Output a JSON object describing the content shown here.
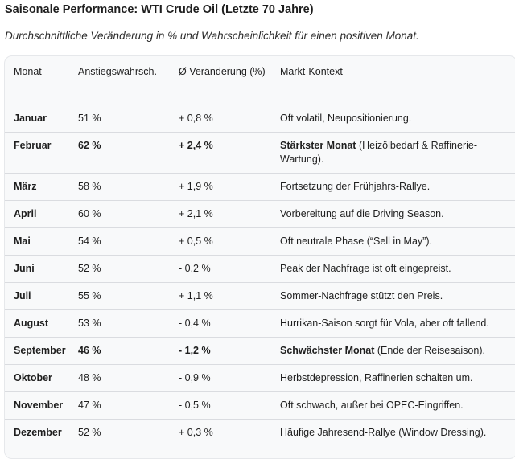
{
  "title": "Saisonale Performance: WTI Crude Oil (Letzte 70 Jahre)",
  "subtitle": "Durchschnittliche Veränderung in % und Wahrscheinlichkeit für einen positiven Monat.",
  "table": {
    "headers": {
      "month": "Monat",
      "probability": "Anstiegswahrsch.",
      "change": "Ø Veränderung (%)",
      "context": "Markt-Kontext"
    },
    "rows": [
      {
        "month": "Januar",
        "probability": "51 %",
        "change": "+ 0,8 %",
        "context_bold": "",
        "context": "Oft volatil, Neupositionierung."
      },
      {
        "month": "Februar",
        "probability": "62 %",
        "change": "+ 2,4 %",
        "context_bold": "Stärkster Monat",
        "context": " (Heizölbedarf & Raffinerie-Wartung)."
      },
      {
        "month": "März",
        "probability": "58 %",
        "change": "+ 1,9 %",
        "context_bold": "",
        "context": "Fortsetzung der Frühjahrs-Rallye."
      },
      {
        "month": "April",
        "probability": "60 %",
        "change": "+ 2,1 %",
        "context_bold": "",
        "context": "Vorbereitung auf die Driving Season."
      },
      {
        "month": "Mai",
        "probability": "54 %",
        "change": "+ 0,5 %",
        "context_bold": "",
        "context": "Oft neutrale Phase (“Sell in May”)."
      },
      {
        "month": "Juni",
        "probability": "52 %",
        "change": "- 0,2 %",
        "context_bold": "",
        "context": "Peak der Nachfrage ist oft eingepreist."
      },
      {
        "month": "Juli",
        "probability": "55 %",
        "change": "+ 1,1 %",
        "context_bold": "",
        "context": "Sommer-Nachfrage stützt den Preis."
      },
      {
        "month": "August",
        "probability": "53 %",
        "change": "- 0,4 %",
        "context_bold": "",
        "context": "Hurrikan-Saison sorgt für Vola, aber oft fallend."
      },
      {
        "month": "September",
        "probability": "46 %",
        "change": "- 1,2 %",
        "context_bold": "Schwächster Monat",
        "context": " (Ende der Reisesaison)."
      },
      {
        "month": "Oktober",
        "probability": "48 %",
        "change": "- 0,9 %",
        "context_bold": "",
        "context": "Herbstdepression, Raffinerien schalten um."
      },
      {
        "month": "November",
        "probability": "47 %",
        "change": "- 0,5 %",
        "context_bold": "",
        "context": "Oft schwach, außer bei OPEC-Eingriffen."
      },
      {
        "month": "Dezember",
        "probability": "52 %",
        "change": "+ 0,3 %",
        "context_bold": "",
        "context": "Häufige Jahresend-Rallye (Window Dressing)."
      }
    ]
  }
}
